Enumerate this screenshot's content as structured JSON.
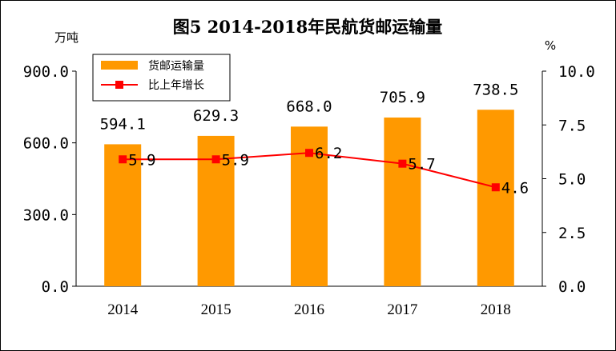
{
  "chart_data": {
    "type": "bar",
    "title": "图5 2014-2018年民航货邮运输量",
    "categories": [
      "2014",
      "2015",
      "2016",
      "2017",
      "2018"
    ],
    "series": [
      {
        "name": "货邮运输量",
        "type": "bar",
        "axis": "left",
        "unit": "万吨",
        "values": [
          594.1,
          629.3,
          668.0,
          705.9,
          738.5
        ],
        "value_labels": [
          "594.1",
          "629.3",
          "668.0",
          "705.9",
          "738.5"
        ],
        "color": "#FF9900"
      },
      {
        "name": "比上年增长",
        "type": "line",
        "axis": "right",
        "unit": "%",
        "values": [
          5.9,
          5.9,
          6.2,
          5.7,
          4.6
        ],
        "value_labels": [
          "5.9",
          "5.9",
          "6.2",
          "5.7",
          "4.6"
        ],
        "color": "#FF0000",
        "marker_color": "#FF0000"
      }
    ],
    "left_axis": {
      "unit_label": "万吨",
      "ylim": [
        0,
        900
      ],
      "ticks": [
        0,
        300,
        600,
        900
      ],
      "tick_labels": [
        "0.0",
        "300.0",
        "600.0",
        "900.0"
      ]
    },
    "right_axis": {
      "unit_label": "%",
      "ylim": [
        0,
        10
      ],
      "ticks": [
        0,
        2.5,
        5,
        7.5,
        10
      ],
      "tick_labels": [
        "0.0",
        "2.5",
        "5.0",
        "7.5",
        "10.0"
      ]
    },
    "grid": false,
    "legend": "top-left"
  }
}
